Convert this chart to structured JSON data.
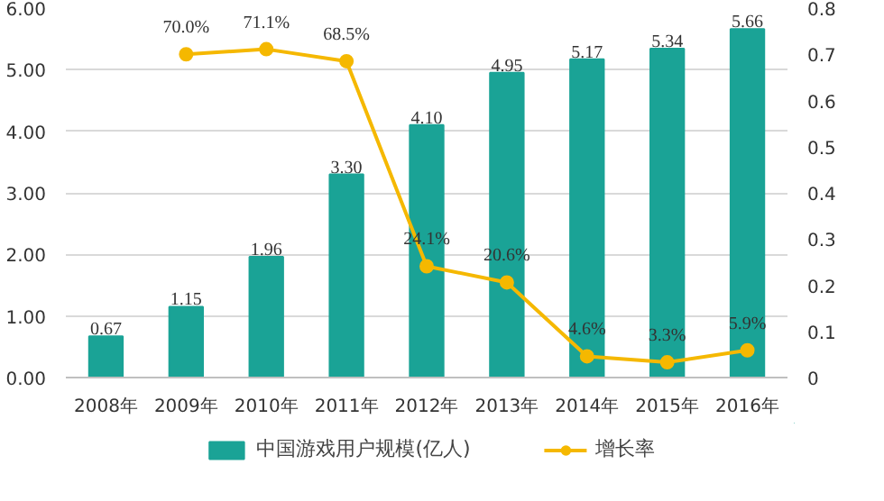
{
  "chart_data": {
    "type": "bar",
    "categories": [
      "2008年",
      "2009年",
      "2010年",
      "2011年",
      "2012年",
      "2013年",
      "2014年",
      "2015年",
      "2016年"
    ],
    "series": [
      {
        "name": "中国游戏用户规模(亿人)",
        "color": "#1aa396",
        "values": [
          0.67,
          1.15,
          1.96,
          3.3,
          4.1,
          4.95,
          5.17,
          5.34,
          5.66
        ],
        "value_labels": [
          "0.67",
          "1.15",
          "1.96",
          "3.30",
          "4.10",
          "4.95",
          "5.17",
          "5.34",
          "5.66"
        ]
      },
      {
        "name": "增长率",
        "type": "line",
        "axis": "y2",
        "color": "#f5b800",
        "values": [
          null,
          0.7,
          0.711,
          0.685,
          0.241,
          0.206,
          0.046,
          0.033,
          0.059
        ],
        "value_labels": [
          null,
          "70.0%",
          "71.1%",
          "68.5%",
          "24.1%",
          "20.6%",
          "4.6%",
          "3.3%",
          "5.9%"
        ]
      }
    ],
    "ylim": [
      0,
      6
    ],
    "yticks": [
      {
        "value": 0,
        "label": "0.00"
      },
      {
        "value": 1,
        "label": "1.00"
      },
      {
        "value": 2,
        "label": "2.00"
      },
      {
        "value": 3,
        "label": "3.00"
      },
      {
        "value": 4,
        "label": "4.00"
      },
      {
        "value": 5,
        "label": "5.00"
      },
      {
        "value": 6,
        "label": "6.00"
      }
    ],
    "y2lim": [
      0,
      0.8
    ],
    "y2ticks": [
      0,
      0.1,
      0.2,
      0.3,
      0.4,
      0.5,
      0.6,
      0.7,
      0.8
    ],
    "grid": "y",
    "legend": "bottom",
    "marker": "circle",
    "line_style": "solid"
  }
}
